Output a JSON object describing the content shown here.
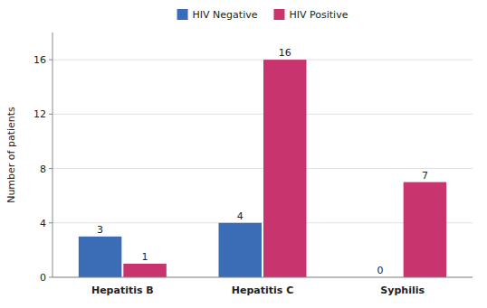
{
  "chart_data": {
    "type": "bar",
    "categories": [
      "Hepatitis B",
      "Hepatitis C",
      "Syphilis"
    ],
    "series": [
      {
        "name": "HIV Negative",
        "color": "#3a6db5",
        "values": [
          3,
          4,
          0
        ]
      },
      {
        "name": "HIV Positive",
        "color": "#c8346e",
        "values": [
          1,
          16,
          7
        ]
      }
    ],
    "ylabel": "Number of patients",
    "ylim": [
      0,
      18
    ],
    "yticks": [
      0,
      4,
      8,
      12,
      16
    ],
    "grid": true,
    "legend": "top",
    "data_labels": true
  }
}
